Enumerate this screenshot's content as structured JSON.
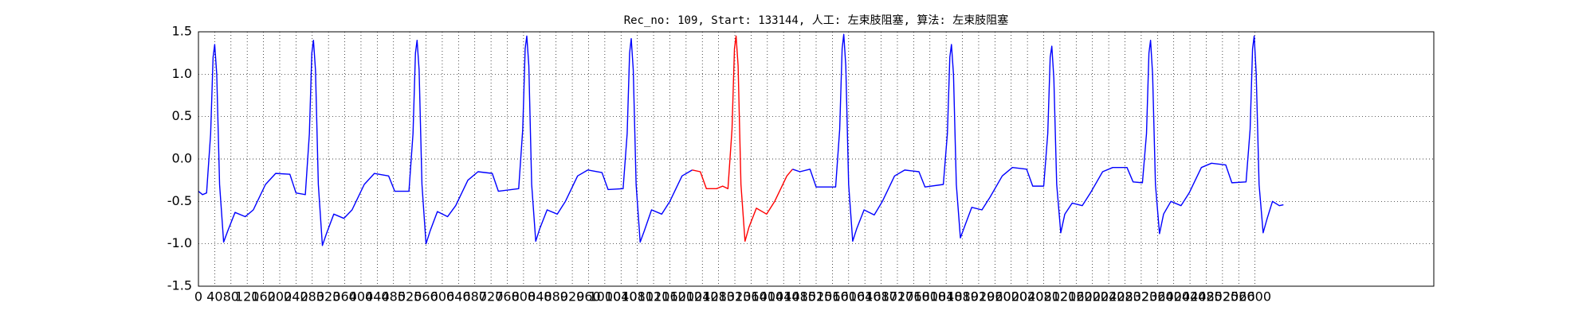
{
  "chart_data": {
    "type": "line",
    "title": "Rec_no: 109, Start: 133144, 人工: 左束肢阻塞, 算法: 左束肢阻塞",
    "xlim": [
      0,
      3040
    ],
    "xticks": [
      0,
      40,
      80,
      120,
      160,
      200,
      240,
      280,
      320,
      360,
      400,
      440,
      480,
      520,
      560,
      600,
      640,
      680,
      720,
      760,
      800,
      840,
      880,
      920,
      960,
      1000,
      1040,
      1080,
      1120,
      1160,
      1200,
      1240,
      1280,
      1320,
      1360,
      1400,
      1440,
      1480,
      1520,
      1560,
      1600,
      1640,
      1680,
      1720,
      1760,
      1800,
      1840,
      1880,
      1920,
      1960,
      2000,
      2040,
      2080,
      2120,
      2160,
      2200,
      2240,
      2280,
      2320,
      2360,
      2400,
      2440,
      2480,
      2520,
      2560,
      2600
    ],
    "ylim": [
      -1.5,
      1.5
    ],
    "yticks": [
      -1.5,
      {
        "value": -1.0,
        "label": "-1.0"
      },
      -0.5,
      {
        "value": 0.0,
        "label": "0.0"
      },
      0.5,
      {
        "value": 1.0,
        "label": "1.0"
      },
      1.5
    ],
    "grid": true,
    "series": [
      {
        "color": "#0000ff",
        "x": [
          0,
          10,
          20,
          30,
          36,
          40,
          45,
          52,
          62,
          72,
          90,
          115,
          135,
          165,
          190,
          225,
          240,
          263,
          273,
          279,
          283,
          288,
          295,
          305,
          315,
          333,
          358,
          378,
          408,
          433,
          468,
          483,
          518,
          528,
          534,
          538,
          543,
          550,
          560,
          570,
          588,
          613,
          633,
          663,
          688,
          723,
          738,
          788,
          798,
          804,
          808,
          813,
          820,
          830,
          840,
          858,
          883,
          903,
          933,
          958,
          993,
          1008,
          1045,
          1055,
          1061,
          1065,
          1070,
          1077,
          1087,
          1097,
          1115,
          1140,
          1160,
          1190,
          1215
        ],
        "values": [
          -0.38,
          -0.42,
          -0.4,
          0.3,
          1.2,
          1.35,
          1.0,
          -0.3,
          -0.98,
          -0.85,
          -0.63,
          -0.68,
          -0.6,
          -0.3,
          -0.17,
          -0.18,
          -0.4,
          -0.42,
          0.3,
          1.25,
          1.4,
          1.05,
          -0.3,
          -1.02,
          -0.88,
          -0.65,
          -0.7,
          -0.6,
          -0.3,
          -0.17,
          -0.2,
          -0.38,
          -0.38,
          0.3,
          1.25,
          1.4,
          1.05,
          -0.3,
          -1.0,
          -0.85,
          -0.62,
          -0.68,
          -0.55,
          -0.25,
          -0.15,
          -0.17,
          -0.38,
          -0.35,
          0.35,
          1.3,
          1.45,
          1.1,
          -0.3,
          -0.97,
          -0.82,
          -0.6,
          -0.65,
          -0.5,
          -0.2,
          -0.13,
          -0.16,
          -0.36,
          -0.35,
          0.3,
          1.25,
          1.42,
          1.05,
          -0.3,
          -0.98,
          -0.85,
          -0.6,
          -0.65,
          -0.5,
          -0.2,
          -0.13
        ]
      },
      {
        "color": "#ff0000",
        "x": [
          1215,
          1235,
          1250,
          1275,
          1290,
          1303,
          1313,
          1319,
          1323,
          1328,
          1335,
          1345,
          1355,
          1373,
          1398,
          1418,
          1448,
          1462
        ],
        "values": [
          -0.13,
          -0.15,
          -0.35,
          -0.35,
          -0.32,
          -0.35,
          0.35,
          1.3,
          1.45,
          1.1,
          -0.3,
          -0.97,
          -0.8,
          -0.58,
          -0.65,
          -0.5,
          -0.2,
          -0.12
        ]
      },
      {
        "color": "#0000ff",
        "x": [
          1462,
          1480,
          1505,
          1520,
          1568,
          1578,
          1584,
          1588,
          1593,
          1600,
          1610,
          1620,
          1638,
          1663,
          1683,
          1713,
          1738,
          1773,
          1788,
          1833,
          1843,
          1849,
          1853,
          1858,
          1865,
          1875,
          1885,
          1903,
          1928,
          1948,
          1978,
          2003,
          2038,
          2053,
          2080,
          2090,
          2096,
          2100,
          2105,
          2112,
          2122,
          2132,
          2150,
          2175,
          2195,
          2225,
          2250,
          2285,
          2300,
          2323,
          2333,
          2339,
          2343,
          2348,
          2355,
          2365,
          2375,
          2393,
          2418,
          2438,
          2468,
          2493,
          2528,
          2543,
          2578,
          2588,
          2594,
          2598,
          2603,
          2610,
          2620,
          2630,
          2643,
          2660,
          2670
        ],
        "values": [
          -0.12,
          -0.15,
          -0.12,
          -0.33,
          -0.33,
          0.35,
          1.3,
          1.47,
          1.1,
          -0.3,
          -0.97,
          -0.82,
          -0.6,
          -0.66,
          -0.5,
          -0.2,
          -0.13,
          -0.15,
          -0.33,
          -0.3,
          0.3,
          1.2,
          1.35,
          1.0,
          -0.3,
          -0.93,
          -0.8,
          -0.57,
          -0.6,
          -0.45,
          -0.2,
          -0.1,
          -0.12,
          -0.32,
          -0.32,
          0.3,
          1.2,
          1.33,
          0.95,
          -0.3,
          -0.87,
          -0.65,
          -0.52,
          -0.55,
          -0.4,
          -0.15,
          -0.1,
          -0.1,
          -0.27,
          -0.28,
          0.3,
          1.25,
          1.4,
          1.0,
          -0.3,
          -0.88,
          -0.65,
          -0.5,
          -0.55,
          -0.4,
          -0.1,
          -0.05,
          -0.07,
          -0.28,
          -0.27,
          0.35,
          1.3,
          1.45,
          1.0,
          -0.3,
          -0.87,
          -0.7,
          -0.5,
          -0.55,
          -0.54
        ]
      }
    ]
  }
}
